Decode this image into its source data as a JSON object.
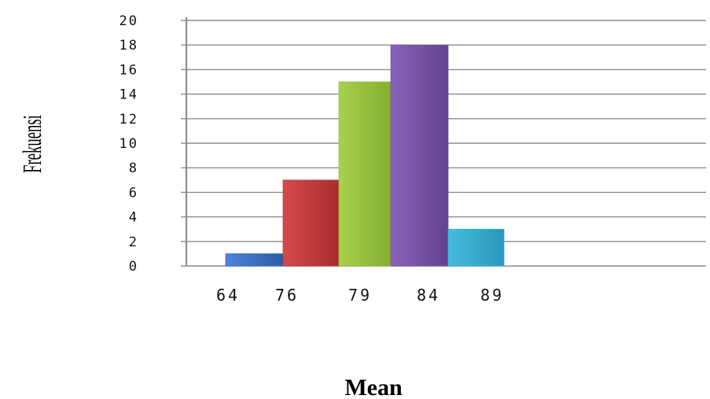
{
  "chart_data": {
    "type": "bar",
    "categories": [
      "64",
      "76",
      "79",
      "84",
      "89"
    ],
    "values": [
      1,
      7,
      15,
      18,
      3
    ],
    "colors": [
      "#3a6fc4",
      "#c23b3b",
      "#97c23c",
      "#7a55a8",
      "#35aed0"
    ],
    "xlabel": "Mean",
    "ylabel": "Frekuensi",
    "ylim": [
      0,
      20
    ],
    "yticks": [
      0,
      2,
      4,
      6,
      8,
      10,
      12,
      14,
      16,
      18,
      20
    ],
    "grid": true,
    "legend": "none"
  }
}
